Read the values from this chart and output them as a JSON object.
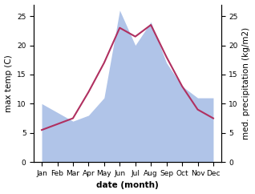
{
  "months": [
    "Jan",
    "Feb",
    "Mar",
    "Apr",
    "May",
    "Jun",
    "Jul",
    "Aug",
    "Sep",
    "Oct",
    "Nov",
    "Dec"
  ],
  "temperature": [
    5.5,
    6.5,
    7.5,
    12.0,
    17.0,
    23.0,
    21.5,
    23.5,
    18.0,
    13.0,
    9.0,
    7.5
  ],
  "precipitation": [
    10.0,
    8.5,
    7.0,
    8.0,
    11.0,
    26.0,
    20.0,
    24.0,
    17.0,
    13.0,
    11.0,
    11.0
  ],
  "temp_color": "#b03060",
  "precip_fill_color": "#b0c4e8",
  "ylim_left": [
    0,
    27
  ],
  "ylim_right": [
    0,
    27
  ],
  "ylabel_left": "max temp (C)",
  "ylabel_right": "med. precipitation (kg/m2)",
  "xlabel": "date (month)",
  "tick_left": [
    0,
    5,
    10,
    15,
    20,
    25
  ],
  "tick_right": [
    0,
    5,
    10,
    15,
    20,
    25
  ],
  "label_fontsize": 7.5,
  "tick_fontsize": 6.5
}
